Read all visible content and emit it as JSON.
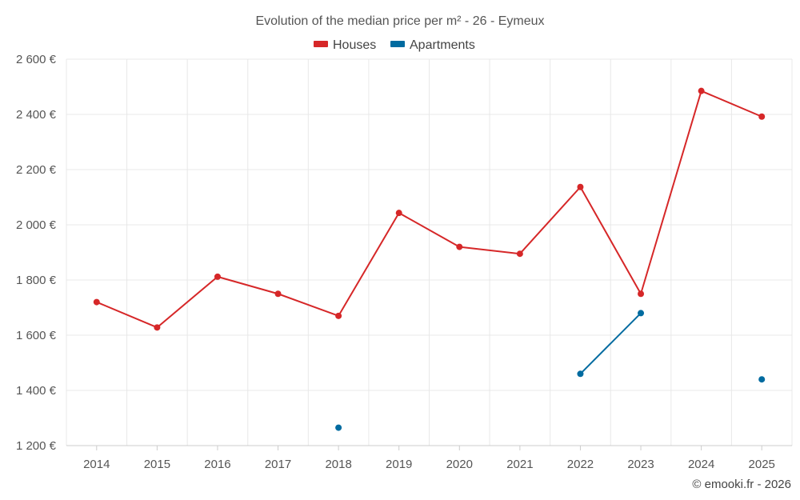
{
  "chart_data": {
    "type": "line",
    "title": "Evolution of the median price per m² - 26 - Eymeux",
    "categories": [
      "2014",
      "2015",
      "2016",
      "2017",
      "2018",
      "2019",
      "2020",
      "2021",
      "2022",
      "2023",
      "2024",
      "2025"
    ],
    "ylim": [
      1200,
      2600
    ],
    "yticks": [
      1200,
      1400,
      1600,
      1800,
      2000,
      2200,
      2400,
      2600
    ],
    "ytick_labels": [
      "1 200 €",
      "1 400 €",
      "1 600 €",
      "1 800 €",
      "2 000 €",
      "2 200 €",
      "2 400 €",
      "2 600 €"
    ],
    "grid": true,
    "legend_position": "top-center",
    "series": [
      {
        "name": "Houses",
        "color": "#d62728",
        "values": [
          1720,
          1628,
          1812,
          1750,
          1670,
          2043,
          1920,
          1895,
          2137,
          1750,
          2485,
          2392
        ]
      },
      {
        "name": "Apartments",
        "color": "#006ba0",
        "values": [
          null,
          null,
          null,
          null,
          1265,
          null,
          null,
          null,
          1460,
          1680,
          null,
          1440
        ]
      }
    ],
    "credit": "© emooki.fr - 2026"
  }
}
